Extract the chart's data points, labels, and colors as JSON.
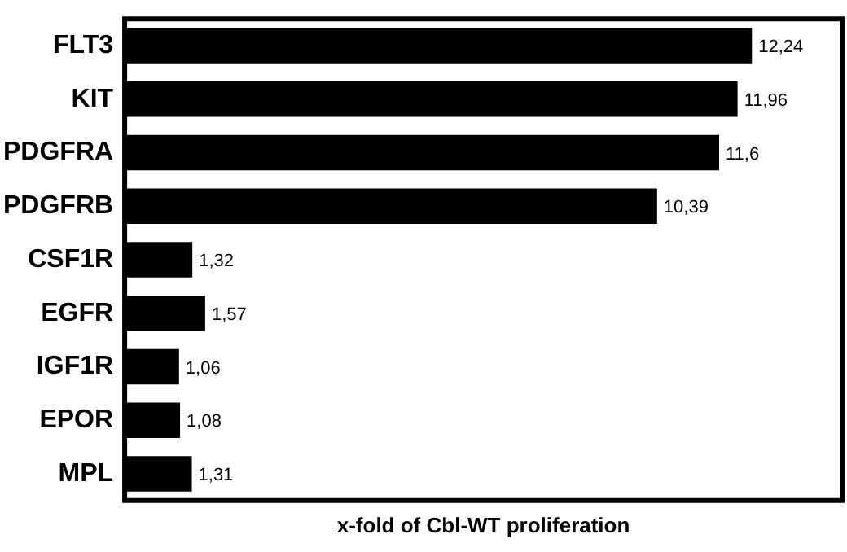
{
  "chart_data": {
    "type": "bar",
    "orientation": "horizontal",
    "xlabel": "x-fold of Cbl-WT proliferation",
    "categories": [
      "FLT3",
      "KIT",
      "PDGFRA",
      "PDGFRB",
      "CSF1R",
      "EGFR",
      "IGF1R",
      "EPOR",
      "MPL"
    ],
    "values": [
      12.24,
      11.96,
      11.6,
      10.39,
      1.32,
      1.57,
      1.06,
      1.08,
      1.31
    ],
    "value_labels": [
      "12,24",
      "11,96",
      "11,6",
      "10,39",
      "1,32",
      "1,57",
      "1,06",
      "1,08",
      "1,31"
    ],
    "color": "#000000"
  }
}
